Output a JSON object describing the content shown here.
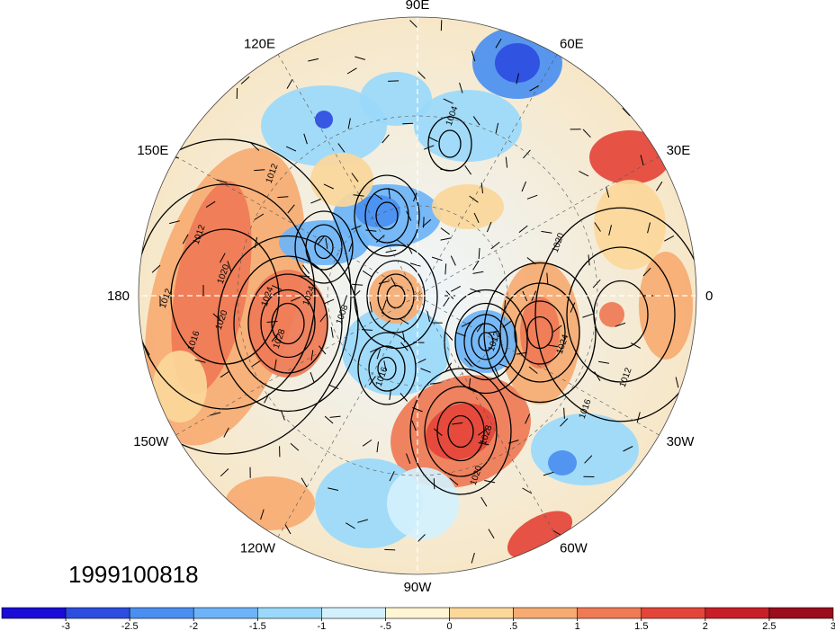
{
  "map": {
    "projection": "polar-stereographic-north",
    "longitude_labels": [
      {
        "text": "90E",
        "lon": 90
      },
      {
        "text": "60E",
        "lon": 60
      },
      {
        "text": "30E",
        "lon": 30
      },
      {
        "text": "0",
        "lon": 0
      },
      {
        "text": "30W",
        "lon": -30
      },
      {
        "text": "60W",
        "lon": -60
      },
      {
        "text": "90W",
        "lon": -90
      },
      {
        "text": "120W",
        "lon": -120
      },
      {
        "text": "150W",
        "lon": -150
      },
      {
        "text": "180",
        "lon": 180
      },
      {
        "text": "150E",
        "lon": 150
      },
      {
        "text": "120E",
        "lon": 120
      }
    ],
    "date_label": "1999100818",
    "contour_labels": [
      "1012",
      "1012",
      "1012",
      "1016",
      "1020",
      "1020",
      "1024",
      "1028",
      "1024",
      "1008",
      "1016",
      "1024",
      "1012",
      "1016",
      "1020",
      "1028",
      "1012",
      "1004",
      "1020"
    ]
  },
  "colorbar": {
    "colors": [
      "#1a0bd6",
      "#2c4de0",
      "#4a8ff0",
      "#6cb4f7",
      "#9ad9fb",
      "#d2f1fd",
      "#fff5d2",
      "#fbd79a",
      "#f6ab72",
      "#ef7a55",
      "#e4453a",
      "#c81e28",
      "#9b0c1c"
    ],
    "labels": [
      "-3",
      "-2.5",
      "-2",
      "-1.5",
      "-1",
      "-.5",
      "0",
      ".5",
      "1",
      "1.5",
      "2",
      "2.5",
      "3"
    ]
  }
}
